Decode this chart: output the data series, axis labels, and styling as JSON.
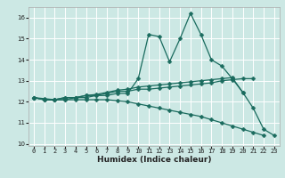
{
  "title": "",
  "xlabel": "Humidex (Indice chaleur)",
  "background_color": "#cce8e4",
  "grid_color": "#ffffff",
  "line_color": "#1a6b5e",
  "x": [
    0,
    1,
    2,
    3,
    4,
    5,
    6,
    7,
    8,
    9,
    10,
    11,
    12,
    13,
    14,
    15,
    16,
    17,
    18,
    19,
    20,
    21,
    22,
    23
  ],
  "line1": [
    12.2,
    12.1,
    12.1,
    12.1,
    12.2,
    12.2,
    12.3,
    12.3,
    12.4,
    12.4,
    13.1,
    15.2,
    15.1,
    13.9,
    15.0,
    16.2,
    15.2,
    14.0,
    13.7,
    13.1,
    12.45,
    11.7,
    10.7,
    10.4
  ],
  "line2": [
    12.2,
    12.1,
    12.1,
    12.2,
    12.2,
    12.3,
    12.3,
    12.4,
    12.5,
    12.5,
    12.6,
    12.6,
    12.65,
    12.7,
    12.75,
    12.8,
    12.85,
    12.9,
    13.0,
    13.05,
    13.1,
    13.1,
    null,
    null
  ],
  "line3": [
    12.2,
    12.1,
    12.1,
    12.2,
    12.2,
    12.3,
    12.35,
    12.45,
    12.55,
    12.6,
    12.7,
    12.75,
    12.8,
    12.85,
    12.9,
    12.95,
    13.0,
    13.05,
    13.1,
    13.15,
    12.45,
    null,
    null,
    null
  ],
  "line4": [
    12.2,
    12.15,
    12.1,
    12.1,
    12.1,
    12.1,
    12.1,
    12.1,
    12.05,
    12.0,
    11.9,
    11.8,
    11.7,
    11.6,
    11.5,
    11.4,
    11.3,
    11.15,
    11.0,
    10.85,
    10.7,
    10.55,
    10.4,
    null
  ],
  "ylim": [
    9.9,
    16.5
  ],
  "xlim": [
    -0.5,
    23.5
  ],
  "yticks": [
    10,
    11,
    12,
    13,
    14,
    15,
    16
  ],
  "xticks": [
    0,
    1,
    2,
    3,
    4,
    5,
    6,
    7,
    8,
    9,
    10,
    11,
    12,
    13,
    14,
    15,
    16,
    17,
    18,
    19,
    20,
    21,
    22,
    23
  ],
  "markersize": 2.5,
  "linewidth": 0.9,
  "xlabel_fontsize": 6.5,
  "tick_fontsize": 5.0
}
